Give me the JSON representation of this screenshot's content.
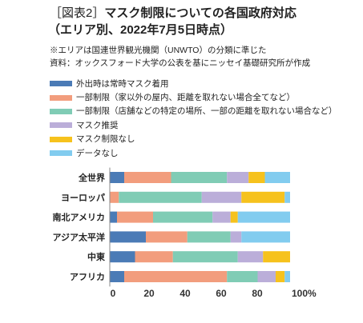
{
  "chart_data": {
    "type": "bar",
    "orientation": "horizontal",
    "stacked": true,
    "figure_label": "［図表2］",
    "title": "マスク制限についての各国政府対応",
    "subtitle": "（エリア別、2022年7月5日時点）",
    "notes": [
      "※エリアは国連世界観光機関（UNWTO）の分類に準じた",
      "資料：オックスフォード大学の公表を基にニッセイ基礎研究所が作成"
    ],
    "xlim": [
      0,
      100
    ],
    "xticks": [
      0,
      20,
      40,
      60,
      80,
      100
    ],
    "xtick_labels": [
      "0",
      "20",
      "40",
      "60",
      "80",
      "100%"
    ],
    "grid": false,
    "legend_position": "top-left",
    "categories": [
      "全世界",
      "ヨーロッパ",
      "南北アメリカ",
      "アジア太平洋",
      "中東",
      "アフリカ"
    ],
    "series": [
      {
        "name": "外出時は常時マスク着用",
        "color": "#4b7bb6",
        "values": [
          8,
          0,
          4,
          20,
          14,
          8
        ]
      },
      {
        "name": "一部制限（家以外の屋内、距離を取れない場合全てなど）",
        "color": "#f29d7d",
        "values": [
          26,
          5,
          20,
          23,
          21,
          57
        ]
      },
      {
        "name": "一部制限（店舗などの特定の場所、一部の距離を取れない場合など）",
        "color": "#80ccb5",
        "values": [
          31,
          46,
          33,
          24,
          36,
          17
        ]
      },
      {
        "name": "マスク推奨",
        "color": "#bbaed9",
        "values": [
          12,
          22,
          10,
          6,
          14,
          10
        ]
      },
      {
        "name": "マスク制限なし",
        "color": "#f6c21d",
        "values": [
          9,
          24,
          4,
          0,
          15,
          5
        ]
      },
      {
        "name": "データなし",
        "color": "#82ccef",
        "values": [
          14,
          3,
          29,
          27,
          0,
          3
        ]
      }
    ]
  }
}
